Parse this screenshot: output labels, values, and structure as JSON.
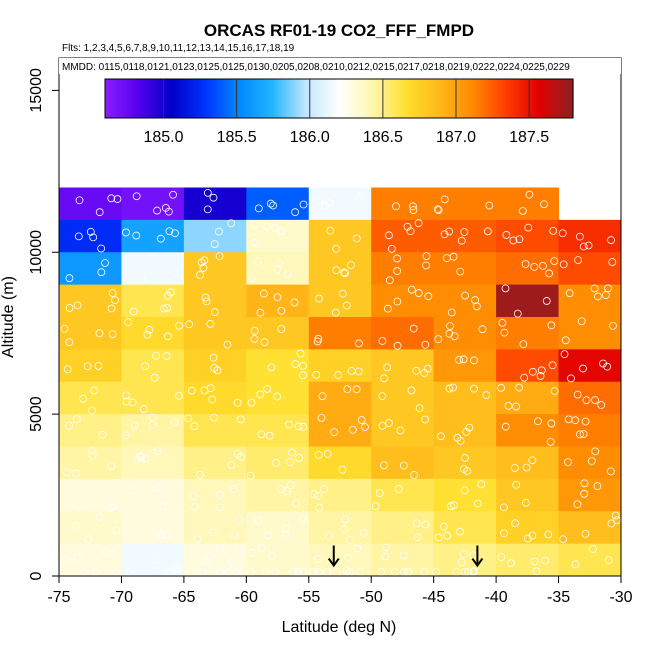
{
  "chart_data": {
    "type": "heatmap",
    "title": "ORCAS RF01-19 CO2_FFF_FMPD",
    "flights_label": "Flts: 1,2,3,4,5,6,7,8,9,10,11,12,13,14,15,16,17,18,19",
    "dates_label": "MMDD: 0115,0118,0121,0123,0125,0125,0130,0205,0208,0210,0212,0215,0217,0218,0219,0222,0224,0225,0229",
    "xlabel": "Latitude (deg N)",
    "ylabel": "Altitude (m)",
    "xlim": [
      -75,
      -30
    ],
    "ylim": [
      0,
      16000
    ],
    "x_ticks": [
      -75,
      -70,
      -65,
      -60,
      -55,
      -50,
      -45,
      -40,
      -35,
      -30
    ],
    "y_ticks": [
      0,
      5000,
      10000,
      15000
    ],
    "lat_edges": [
      -75,
      -70,
      -65,
      -60,
      -55,
      -50,
      -45,
      -40,
      -35,
      -30
    ],
    "alt_bin_size": 1000,
    "colorbar": {
      "range": [
        184.6,
        187.8
      ],
      "ticks": [
        185.0,
        185.5,
        186.0,
        186.5,
        187.0,
        187.5
      ],
      "colors": [
        "#8b1fff",
        "#5500ee",
        "#0000c8",
        "#0033ff",
        "#0088ff",
        "#22b4ff",
        "#bfe6ff",
        "#ffffff",
        "#fff7b0",
        "#ffe030",
        "#ffb818",
        "#ff8a00",
        "#ff3c00",
        "#e00000",
        "#8b2323"
      ]
    },
    "cells": [
      {
        "lat0": -75,
        "alt0": 11000,
        "value": 184.75
      },
      {
        "lat0": -70,
        "alt0": 11000,
        "value": 184.7
      },
      {
        "lat0": -65,
        "alt0": 11000,
        "value": 185.0
      },
      {
        "lat0": -60,
        "alt0": 11000,
        "value": 185.4
      },
      {
        "lat0": -55,
        "alt0": 11000,
        "value": 186.15
      },
      {
        "lat0": -50,
        "alt0": 11000,
        "value": 187.15
      },
      {
        "lat0": -45,
        "alt0": 11000,
        "value": 187.15
      },
      {
        "lat0": -40,
        "alt0": 11000,
        "value": 187.15
      },
      {
        "lat0": -75,
        "alt0": 10000,
        "value": 185.25
      },
      {
        "lat0": -70,
        "alt0": 10000,
        "value": 185.65
      },
      {
        "lat0": -65,
        "alt0": 10000,
        "value": 185.9
      },
      {
        "lat0": -60,
        "alt0": 10000,
        "value": 186.35
      },
      {
        "lat0": -55,
        "alt0": 10000,
        "value": 186.8
      },
      {
        "lat0": -50,
        "alt0": 10000,
        "value": 187.25
      },
      {
        "lat0": -45,
        "alt0": 10000,
        "value": 187.25
      },
      {
        "lat0": -40,
        "alt0": 10000,
        "value": 187.3
      },
      {
        "lat0": -35,
        "alt0": 10000,
        "value": 187.4
      },
      {
        "lat0": -75,
        "alt0": 9000,
        "value": 185.6
      },
      {
        "lat0": -70,
        "alt0": 9000,
        "value": 186.15
      },
      {
        "lat0": -65,
        "alt0": 9000,
        "value": 186.8
      },
      {
        "lat0": -60,
        "alt0": 9000,
        "value": 186.4
      },
      {
        "lat0": -55,
        "alt0": 9000,
        "value": 186.8
      },
      {
        "lat0": -50,
        "alt0": 9000,
        "value": 187.15
      },
      {
        "lat0": -45,
        "alt0": 9000,
        "value": 187.15
      },
      {
        "lat0": -40,
        "alt0": 9000,
        "value": 187.2
      },
      {
        "lat0": -35,
        "alt0": 9000,
        "value": 187.3
      },
      {
        "lat0": -75,
        "alt0": 8000,
        "value": 186.8
      },
      {
        "lat0": -70,
        "alt0": 8000,
        "value": 186.6
      },
      {
        "lat0": -65,
        "alt0": 8000,
        "value": 186.8
      },
      {
        "lat0": -60,
        "alt0": 8000,
        "value": 186.9
      },
      {
        "lat0": -55,
        "alt0": 8000,
        "value": 186.8
      },
      {
        "lat0": -50,
        "alt0": 8000,
        "value": 187.1
      },
      {
        "lat0": -45,
        "alt0": 8000,
        "value": 187.1
      },
      {
        "lat0": -40,
        "alt0": 8000,
        "value": 187.75
      },
      {
        "lat0": -35,
        "alt0": 8000,
        "value": 187.1
      },
      {
        "lat0": -75,
        "alt0": 7000,
        "value": 186.8
      },
      {
        "lat0": -70,
        "alt0": 7000,
        "value": 186.7
      },
      {
        "lat0": -65,
        "alt0": 7000,
        "value": 186.8
      },
      {
        "lat0": -60,
        "alt0": 7000,
        "value": 186.8
      },
      {
        "lat0": -55,
        "alt0": 7000,
        "value": 187.15
      },
      {
        "lat0": -50,
        "alt0": 7000,
        "value": 187.2
      },
      {
        "lat0": -45,
        "alt0": 7000,
        "value": 187.1
      },
      {
        "lat0": -40,
        "alt0": 7000,
        "value": 187.15
      },
      {
        "lat0": -35,
        "alt0": 7000,
        "value": 187.1
      },
      {
        "lat0": -75,
        "alt0": 6000,
        "value": 186.75
      },
      {
        "lat0": -70,
        "alt0": 6000,
        "value": 186.6
      },
      {
        "lat0": -65,
        "alt0": 6000,
        "value": 186.75
      },
      {
        "lat0": -60,
        "alt0": 6000,
        "value": 186.65
      },
      {
        "lat0": -55,
        "alt0": 6000,
        "value": 186.75
      },
      {
        "lat0": -50,
        "alt0": 6000,
        "value": 186.8
      },
      {
        "lat0": -45,
        "alt0": 6000,
        "value": 187.05
      },
      {
        "lat0": -40,
        "alt0": 6000,
        "value": 187.3
      },
      {
        "lat0": -35,
        "alt0": 6000,
        "value": 187.55
      },
      {
        "lat0": -75,
        "alt0": 5000,
        "value": 186.6
      },
      {
        "lat0": -70,
        "alt0": 5000,
        "value": 186.6
      },
      {
        "lat0": -65,
        "alt0": 5000,
        "value": 186.7
      },
      {
        "lat0": -60,
        "alt0": 5000,
        "value": 186.65
      },
      {
        "lat0": -55,
        "alt0": 5000,
        "value": 186.95
      },
      {
        "lat0": -50,
        "alt0": 5000,
        "value": 186.8
      },
      {
        "lat0": -45,
        "alt0": 5000,
        "value": 186.85
      },
      {
        "lat0": -40,
        "alt0": 5000,
        "value": 186.95
      },
      {
        "lat0": -35,
        "alt0": 5000,
        "value": 187.2
      },
      {
        "lat0": -75,
        "alt0": 4000,
        "value": 186.5
      },
      {
        "lat0": -70,
        "alt0": 4000,
        "value": 186.45
      },
      {
        "lat0": -65,
        "alt0": 4000,
        "value": 186.6
      },
      {
        "lat0": -60,
        "alt0": 4000,
        "value": 186.6
      },
      {
        "lat0": -55,
        "alt0": 4000,
        "value": 186.95
      },
      {
        "lat0": -50,
        "alt0": 4000,
        "value": 186.8
      },
      {
        "lat0": -45,
        "alt0": 4000,
        "value": 186.85
      },
      {
        "lat0": -40,
        "alt0": 4000,
        "value": 187.1
      },
      {
        "lat0": -35,
        "alt0": 4000,
        "value": 187.15
      },
      {
        "lat0": -75,
        "alt0": 3000,
        "value": 186.45
      },
      {
        "lat0": -70,
        "alt0": 3000,
        "value": 186.4
      },
      {
        "lat0": -65,
        "alt0": 3000,
        "value": 186.5
      },
      {
        "lat0": -60,
        "alt0": 3000,
        "value": 186.55
      },
      {
        "lat0": -55,
        "alt0": 3000,
        "value": 186.7
      },
      {
        "lat0": -50,
        "alt0": 3000,
        "value": 186.85
      },
      {
        "lat0": -45,
        "alt0": 3000,
        "value": 186.8
      },
      {
        "lat0": -40,
        "alt0": 3000,
        "value": 186.85
      },
      {
        "lat0": -35,
        "alt0": 3000,
        "value": 187.1
      },
      {
        "lat0": -75,
        "alt0": 2000,
        "value": 186.3
      },
      {
        "lat0": -70,
        "alt0": 2000,
        "value": 186.3
      },
      {
        "lat0": -65,
        "alt0": 2000,
        "value": 186.4
      },
      {
        "lat0": -60,
        "alt0": 2000,
        "value": 186.45
      },
      {
        "lat0": -55,
        "alt0": 2000,
        "value": 186.5
      },
      {
        "lat0": -50,
        "alt0": 2000,
        "value": 186.6
      },
      {
        "lat0": -45,
        "alt0": 2000,
        "value": 186.65
      },
      {
        "lat0": -40,
        "alt0": 2000,
        "value": 186.8
      },
      {
        "lat0": -35,
        "alt0": 2000,
        "value": 187.05
      },
      {
        "lat0": -75,
        "alt0": 1000,
        "value": 186.35
      },
      {
        "lat0": -70,
        "alt0": 1000,
        "value": 186.3
      },
      {
        "lat0": -65,
        "alt0": 1000,
        "value": 186.4
      },
      {
        "lat0": -60,
        "alt0": 1000,
        "value": 186.35
      },
      {
        "lat0": -55,
        "alt0": 1000,
        "value": 186.45
      },
      {
        "lat0": -50,
        "alt0": 1000,
        "value": 186.5
      },
      {
        "lat0": -45,
        "alt0": 1000,
        "value": 186.6
      },
      {
        "lat0": -40,
        "alt0": 1000,
        "value": 186.75
      },
      {
        "lat0": -35,
        "alt0": 1000,
        "value": 186.85
      },
      {
        "lat0": -75,
        "alt0": 0,
        "value": 186.3
      },
      {
        "lat0": -70,
        "alt0": 0,
        "value": 186.15
      },
      {
        "lat0": -65,
        "alt0": 0,
        "value": 186.3
      },
      {
        "lat0": -60,
        "alt0": 0,
        "value": 186.35
      },
      {
        "lat0": -55,
        "alt0": 0,
        "value": 186.4
      },
      {
        "lat0": -50,
        "alt0": 0,
        "value": 186.45
      },
      {
        "lat0": -45,
        "alt0": 0,
        "value": 186.5
      },
      {
        "lat0": -40,
        "alt0": 0,
        "value": 186.55
      },
      {
        "lat0": -35,
        "alt0": 0,
        "value": 186.6
      }
    ],
    "arrows": [
      {
        "lat": -53,
        "alt": 200
      },
      {
        "lat": -41.5,
        "alt": 200
      }
    ],
    "sample_points_note": "white open circles mark individual flight samples"
  }
}
